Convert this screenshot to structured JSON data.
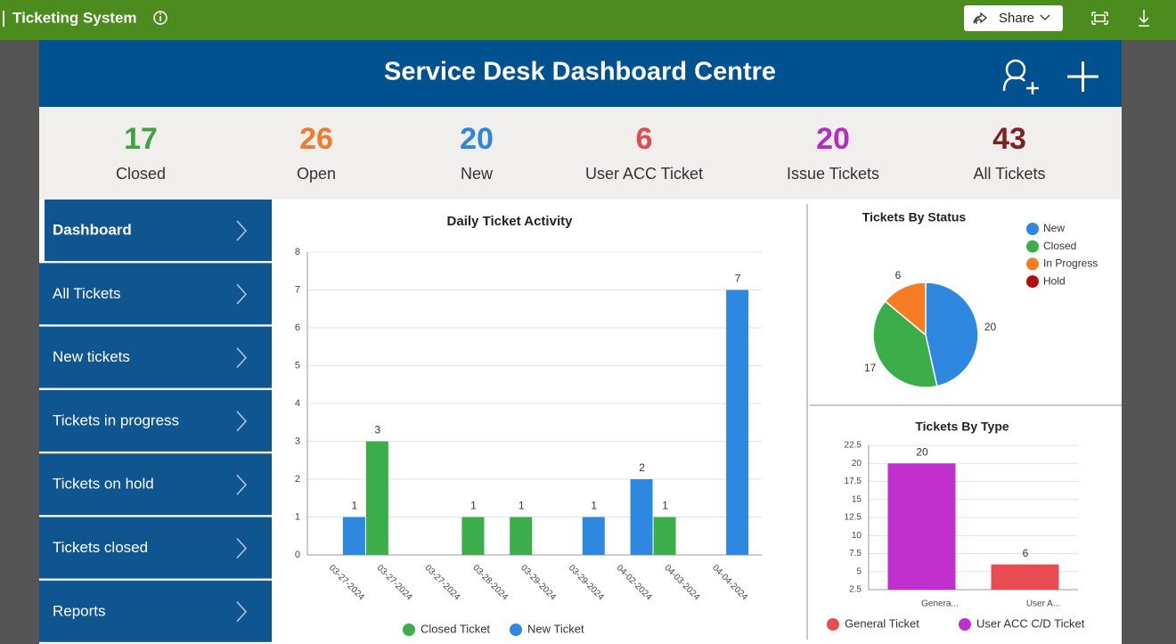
{
  "topbar": {
    "app_title": "Ticketing System",
    "share": "Share"
  },
  "header": {
    "title": "Service Desk Dashboard Centre"
  },
  "kpis": [
    {
      "value": 17,
      "label": "Closed",
      "color": "#3ea33e"
    },
    {
      "value": 26,
      "label": "Open",
      "color": "#f07a30"
    },
    {
      "value": 20,
      "label": "New",
      "color": "#2d86d9"
    },
    {
      "value": 6,
      "label": "User ACC Ticket",
      "color": "#e04a4a"
    },
    {
      "value": 20,
      "label": "Issue Tickets",
      "color": "#b42dc0"
    },
    {
      "value": 43,
      "label": "All Tickets",
      "color": "#7b2323"
    }
  ],
  "nav": [
    "Dashboard",
    "All Tickets",
    "New tickets",
    "Tickets in progress",
    "Tickets on hold",
    "Tickets closed",
    "Reports"
  ],
  "chart_data": [
    {
      "type": "bar",
      "title": "Daily Ticket Activity",
      "categories": [
        "03-27-2024",
        "03-27-2024",
        "03-27-2024",
        "03-28-2024",
        "03-29-2024",
        "03-29-2024",
        "04-02-2024",
        "04-03-2024",
        "04-04-2024"
      ],
      "series": [
        {
          "name": "Closed Ticket",
          "color": "#3cae49",
          "values": [
            3,
            null,
            1,
            1,
            null,
            null,
            1,
            null,
            null
          ]
        },
        {
          "name": "New Ticket",
          "color": "#2e88e0",
          "values": [
            1,
            null,
            null,
            null,
            null,
            1,
            2,
            null,
            7
          ]
        }
      ],
      "ylim": [
        0,
        8
      ],
      "yticks": [
        0,
        1,
        2,
        3,
        4,
        5,
        6,
        7,
        8
      ],
      "grid": true,
      "legend": "bottom"
    },
    {
      "type": "pie",
      "title": "Tickets By Status",
      "categories": [
        "New",
        "Closed",
        "In Progress",
        "Hold"
      ],
      "values": [
        20,
        17,
        6,
        0
      ],
      "colors": [
        "#2e88e0",
        "#3cae49",
        "#f57c22",
        "#b00f0f"
      ],
      "legend": "top-right"
    },
    {
      "type": "bar",
      "title": "Tickets By Type",
      "categories": [
        "Genera...",
        "User A..."
      ],
      "values": [
        20,
        6
      ],
      "colors": [
        "#c22fcf",
        "#e84c52"
      ],
      "legend_items": [
        {
          "name": "General Ticket",
          "color": "#e84c52"
        },
        {
          "name": "User ACC C/D Ticket",
          "color": "#c22fcf"
        }
      ],
      "ylim": [
        2.5,
        22.5
      ],
      "yticks": [
        2.5,
        5,
        7.5,
        10,
        12.5,
        15,
        17.5,
        20,
        22.5
      ],
      "grid": true,
      "legend": "bottom"
    }
  ]
}
